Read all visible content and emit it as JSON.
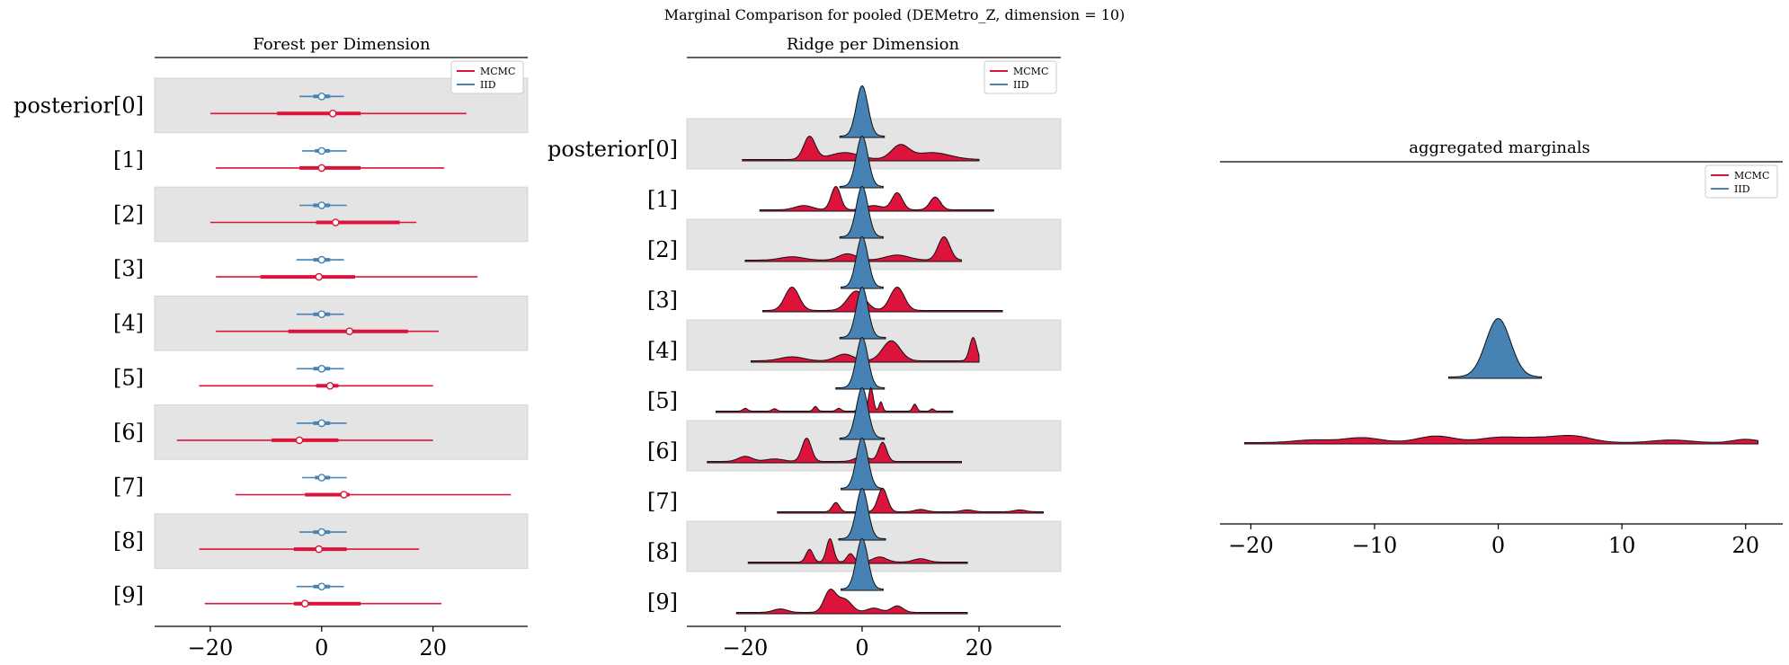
{
  "suptitle": "Marginal Comparison for pooled (DEMetro_Z, dimension = 10)",
  "colors": {
    "mcmc": "#dc143c",
    "iid": "#4682b4",
    "band": "#e4e4e4",
    "axis": "#000000"
  },
  "legend": {
    "entries": [
      "MCMC",
      "IID"
    ]
  },
  "chart_data": [
    {
      "type": "forest",
      "title": "Forest per Dimension",
      "xlim": [
        -30,
        37
      ],
      "xticks": [
        -20,
        0,
        20
      ],
      "xticklabels": [
        "−20",
        "0",
        "20"
      ],
      "row_labels": [
        "posterior[0]",
        "[1]",
        "[2]",
        "[3]",
        "[4]",
        "[5]",
        "[6]",
        "[7]",
        "[8]",
        "[9]"
      ],
      "series": [
        {
          "name": "MCMC",
          "rows": [
            {
              "lo": -20,
              "q1": -8,
              "mid": 2,
              "q3": 7,
              "hi": 26
            },
            {
              "lo": -19,
              "q1": -4,
              "mid": 0,
              "q3": 7,
              "hi": 22
            },
            {
              "lo": -20,
              "q1": -1,
              "mid": 2.5,
              "q3": 14,
              "hi": 17
            },
            {
              "lo": -19,
              "q1": -11,
              "mid": -0.5,
              "q3": 6,
              "hi": 28
            },
            {
              "lo": -19,
              "q1": -6,
              "mid": 5,
              "q3": 15.5,
              "hi": 21
            },
            {
              "lo": -22,
              "q1": -1,
              "mid": 1.5,
              "q3": 3,
              "hi": 20
            },
            {
              "lo": -26,
              "q1": -9,
              "mid": -4,
              "q3": 3,
              "hi": 20
            },
            {
              "lo": -15.5,
              "q1": -3,
              "mid": 4,
              "q3": 5,
              "hi": 34
            },
            {
              "lo": -22,
              "q1": -5,
              "mid": -0.5,
              "q3": 4.5,
              "hi": 17.5
            },
            {
              "lo": -21,
              "q1": -5,
              "mid": -3,
              "q3": 7,
              "hi": 21.5
            }
          ]
        },
        {
          "name": "IID",
          "rows": [
            {
              "lo": -4,
              "q1": -1.5,
              "mid": 0,
              "q3": 1.5,
              "hi": 4
            },
            {
              "lo": -3.5,
              "q1": -1.2,
              "mid": 0,
              "q3": 1.5,
              "hi": 4.5
            },
            {
              "lo": -4,
              "q1": -1.5,
              "mid": 0,
              "q3": 1.5,
              "hi": 4.5
            },
            {
              "lo": -4.5,
              "q1": -1.5,
              "mid": 0,
              "q3": 1.5,
              "hi": 4
            },
            {
              "lo": -4.5,
              "q1": -1.5,
              "mid": 0,
              "q3": 1.5,
              "hi": 4
            },
            {
              "lo": -4.5,
              "q1": -1.5,
              "mid": 0,
              "q3": 1.5,
              "hi": 4
            },
            {
              "lo": -4.5,
              "q1": -1.5,
              "mid": 0,
              "q3": 1.5,
              "hi": 4.5
            },
            {
              "lo": -3.5,
              "q1": -1.2,
              "mid": 0,
              "q3": 1.5,
              "hi": 4.5
            },
            {
              "lo": -4,
              "q1": -1.5,
              "mid": 0,
              "q3": 1.5,
              "hi": 4.5
            },
            {
              "lo": -4.5,
              "q1": -1.5,
              "mid": 0,
              "q3": 1.5,
              "hi": 4
            }
          ]
        }
      ]
    },
    {
      "type": "ridge",
      "title": "Ridge per Dimension",
      "xlim": [
        -30,
        34
      ],
      "xticks": [
        -20,
        0,
        20
      ],
      "xticklabels": [
        "−20",
        "0",
        "20"
      ],
      "row_labels": [
        "posterior[0]",
        "[1]",
        "[2]",
        "[3]",
        "[4]",
        "[5]",
        "[6]",
        "[7]",
        "[8]",
        "[9]"
      ],
      "series": [
        {
          "name": "MCMC",
          "rows": [
            {
              "min": -20.5,
              "max": 20,
              "peaks": [
                [
                  -9,
                  0.5,
                  1.0
                ],
                [
                  6.5,
                  0.3,
                  1.5
                ],
                [
                  -3,
                  0.15,
                  2.5
                ],
                [
                  12,
                  0.15,
                  3
                ]
              ]
            },
            {
              "min": -17.5,
              "max": 22.5,
              "peaks": [
                [
                  -4.5,
                  0.55,
                  0.8
                ],
                [
                  6,
                  0.4,
                  0.9
                ],
                [
                  12.5,
                  0.3,
                  0.9
                ],
                [
                  -10,
                  0.1,
                  1.5
                ],
                [
                  2,
                  0.1,
                  1.5
                ]
              ]
            },
            {
              "min": -20,
              "max": 17,
              "peaks": [
                [
                  14,
                  0.55,
                  1.0
                ],
                [
                  -2.5,
                  0.15,
                  1.5
                ],
                [
                  6,
                  0.12,
                  2
                ],
                [
                  -12,
                  0.08,
                  2
                ]
              ]
            },
            {
              "min": -17,
              "max": 24,
              "peaks": [
                [
                  -12,
                  0.3,
                  1.2
                ],
                [
                  -1,
                  0.25,
                  1.5
                ],
                [
                  6,
                  0.3,
                  1.2
                ]
              ]
            },
            {
              "min": -19,
              "max": 20,
              "peaks": [
                [
                  5,
                  0.3,
                  1.5
                ],
                [
                  19,
                  0.35,
                  0.6
                ],
                [
                  -12,
                  0.06,
                  2
                ],
                [
                  -3,
                  0.1,
                  1.5
                ]
              ]
            },
            {
              "min": -25,
              "max": 15.5,
              "peaks": [
                [
                  1.5,
                  1.0,
                  0.4
                ],
                [
                  3.2,
                  0.4,
                  0.3
                ],
                [
                  -0.5,
                  0.3,
                  0.3
                ],
                [
                  9,
                  0.3,
                  0.35
                ],
                [
                  -8,
                  0.2,
                  0.35
                ],
                [
                  -20,
                  0.12,
                  0.4
                ],
                [
                  -15,
                  0.1,
                  0.4
                ],
                [
                  12,
                  0.1,
                  0.3
                ],
                [
                  -4,
                  0.12,
                  0.4
                ]
              ]
            },
            {
              "min": -26.5,
              "max": 17,
              "peaks": [
                [
                  -9.5,
                  0.55,
                  0.8
                ],
                [
                  3.5,
                  0.45,
                  0.7
                ],
                [
                  -20,
                  0.12,
                  1.2
                ],
                [
                  0,
                  0.12,
                  1.2
                ],
                [
                  -15,
                  0.06,
                  1.5
                ]
              ]
            },
            {
              "min": -14.5,
              "max": 31,
              "peaks": [
                [
                  3.5,
                  1.0,
                  0.8
                ],
                [
                  -4.5,
                  0.4,
                  0.6
                ],
                [
                  10,
                  0.1,
                  1
                ],
                [
                  18,
                  0.08,
                  1
                ],
                [
                  27,
                  0.08,
                  1
                ]
              ]
            },
            {
              "min": -19.5,
              "max": 18,
              "peaks": [
                [
                  -5.5,
                  0.55,
                  0.6
                ],
                [
                  -9,
                  0.3,
                  0.6
                ],
                [
                  -2,
                  0.2,
                  0.6
                ],
                [
                  3,
                  0.12,
                  1.2
                ],
                [
                  10,
                  0.08,
                  1.2
                ]
              ]
            },
            {
              "min": -21.5,
              "max": 18,
              "peaks": [
                [
                  -5.5,
                  0.5,
                  1.0
                ],
                [
                  -3,
                  0.3,
                  1.2
                ],
                [
                  6,
                  0.15,
                  1.0
                ],
                [
                  -14,
                  0.08,
                  1.2
                ],
                [
                  2,
                  0.1,
                  1.2
                ]
              ]
            }
          ]
        },
        {
          "name": "IID",
          "rows": [
            {
              "min": -3.8,
              "max": 3.8,
              "peaks": [
                [
                  0,
                  1.0,
                  1.0
                ]
              ]
            },
            {
              "min": -3.8,
              "max": 3.6,
              "peaks": [
                [
                  0,
                  1.0,
                  1.0
                ]
              ]
            },
            {
              "min": -3.8,
              "max": 3.6,
              "peaks": [
                [
                  0,
                  1.0,
                  1.0
                ]
              ]
            },
            {
              "min": -3.6,
              "max": 3.6,
              "peaks": [
                [
                  0,
                  1.0,
                  1.0
                ]
              ]
            },
            {
              "min": -3.8,
              "max": 4.0,
              "peaks": [
                [
                  0,
                  1.0,
                  1.0
                ]
              ]
            },
            {
              "min": -4.5,
              "max": 3.8,
              "peaks": [
                [
                  0,
                  1.0,
                  1.0
                ]
              ]
            },
            {
              "min": -3.8,
              "max": 3.8,
              "peaks": [
                [
                  0,
                  1.0,
                  1.0
                ]
              ]
            },
            {
              "min": -3.6,
              "max": 3.6,
              "peaks": [
                [
                  0,
                  1.0,
                  1.0
                ]
              ]
            },
            {
              "min": -4.0,
              "max": 4.0,
              "peaks": [
                [
                  0,
                  1.0,
                  1.0
                ]
              ]
            },
            {
              "min": -3.6,
              "max": 3.6,
              "peaks": [
                [
                  0,
                  1.0,
                  1.0
                ]
              ]
            }
          ]
        }
      ]
    },
    {
      "type": "area",
      "title": "aggregated marginals",
      "xlim": [
        -22.5,
        23
      ],
      "xticks": [
        -20,
        -10,
        0,
        10,
        20
      ],
      "xticklabels": [
        "−20",
        "−10",
        "0",
        "10",
        "20"
      ],
      "series": [
        {
          "name": "MCMC",
          "min": -20.5,
          "max": 21,
          "peaks": [
            [
              -11,
              0.15,
              1.5
            ],
            [
              -5,
              0.2,
              1.5
            ],
            [
              0,
              0.15,
              1.5
            ],
            [
              6,
              0.2,
              1.5
            ],
            [
              3,
              0.12,
              1.5
            ],
            [
              -15,
              0.08,
              1.5
            ],
            [
              14,
              0.08,
              1.5
            ],
            [
              20,
              0.1,
              1
            ]
          ]
        },
        {
          "name": "IID",
          "min": -4.0,
          "max": 3.5,
          "peaks": [
            [
              0,
              1.0,
              1.0
            ]
          ]
        }
      ]
    }
  ]
}
